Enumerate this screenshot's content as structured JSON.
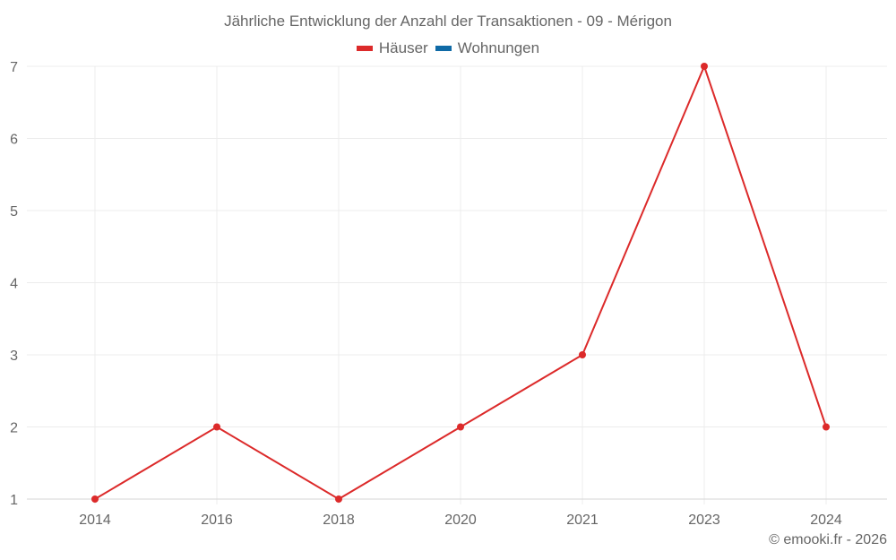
{
  "title": "Jährliche Entwicklung der Anzahl der Transaktionen - 09 - Mérigon",
  "legend": [
    {
      "label": "Häuser",
      "color": "#dc2a2a"
    },
    {
      "label": "Wohnungen",
      "color": "#0f6aa6"
    }
  ],
  "credit": "© emooki.fr - 2026",
  "chart_data": {
    "type": "line",
    "title": "Jährliche Entwicklung der Anzahl der Transaktionen - 09 - Mérigon",
    "xlabel": "",
    "ylabel": "",
    "categories": [
      "2014",
      "2016",
      "2018",
      "2020",
      "2021",
      "2023",
      "2024"
    ],
    "series": [
      {
        "name": "Häuser",
        "color": "#dc2a2a",
        "values": [
          1,
          2,
          1,
          2,
          3,
          7,
          2
        ]
      },
      {
        "name": "Wohnungen",
        "color": "#0f6aa6",
        "values": []
      }
    ],
    "yticks": [
      1,
      2,
      3,
      4,
      5,
      6,
      7
    ],
    "ylim": [
      1,
      7
    ],
    "grid": true,
    "legend_position": "top"
  }
}
